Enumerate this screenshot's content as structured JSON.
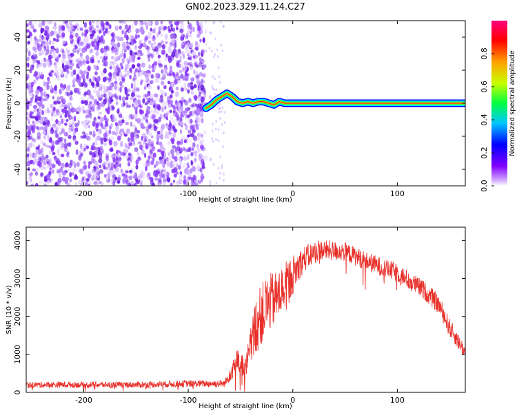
{
  "title": "GN02.2023.329.11.24.C27",
  "colors": {
    "trace": "#e8302a",
    "frame": "#000000",
    "noise": "#7a2cf0",
    "line": "#ff3030"
  },
  "chart_data": [
    {
      "type": "heatmap",
      "xlabel": "Height of straight line (km)",
      "ylabel": "Frequency (Hz)",
      "xlim": [
        -255,
        165
      ],
      "ylim": [
        -50,
        50
      ],
      "xticks": [
        -200,
        -100,
        0,
        100
      ],
      "yticks": [
        -40,
        -20,
        0,
        20,
        40
      ],
      "xtick_labels": [
        "-200",
        "-100",
        "0",
        "100"
      ],
      "ytick_labels": [
        "-40",
        "-20",
        "0",
        "20",
        "40"
      ],
      "colorbar": {
        "label": "Normalized spectral amplitude",
        "range": [
          0,
          1
        ],
        "ticks": [
          0.0,
          0.2,
          0.4,
          0.6,
          0.8
        ],
        "tick_labels": [
          "0.0",
          "0.2",
          "0.4",
          "0.6",
          "0.8"
        ],
        "colormap": [
          "#ffffff",
          "#8000ff",
          "#0000ff",
          "#00c8ff",
          "#00ff40",
          "#c8ff00",
          "#ffa000",
          "#ff0000",
          "#ff0080"
        ]
      },
      "noise_region_x": [
        -255,
        -83
      ],
      "signal_track": {
        "x": [
          -83,
          -78,
          -73,
          -68,
          -63,
          -58,
          -53,
          -48,
          -43,
          -38,
          -33,
          -28,
          -23,
          -18,
          -13,
          -8,
          0,
          50,
          100,
          165
        ],
        "y": [
          -3,
          -1,
          2,
          4,
          6,
          4,
          1,
          0,
          1,
          0,
          1,
          1,
          0,
          -1,
          1,
          0,
          0,
          0,
          0,
          0
        ]
      }
    },
    {
      "type": "line",
      "xlabel": "Height of straight line (km)",
      "ylabel": "SNR (10 * v/v)",
      "xlim": [
        -255,
        165
      ],
      "ylim": [
        0,
        4350
      ],
      "xticks": [
        -200,
        -100,
        0,
        100
      ],
      "yticks": [
        0,
        1000,
        2000,
        3000,
        4000
      ],
      "xtick_labels": [
        "-200",
        "-100",
        "0",
        "100"
      ],
      "ytick_labels": [
        "0",
        "1000",
        "2000",
        "3000",
        "4000"
      ],
      "series": [
        {
          "envelope_x": [
            -255,
            -200,
            -150,
            -100,
            -65,
            -55,
            -45,
            -35,
            -25,
            -15,
            -5,
            10,
            25,
            50,
            75,
            100,
            125,
            140,
            150,
            165
          ],
          "envelope_y": [
            200,
            200,
            200,
            230,
            230,
            800,
            600,
            1800,
            2300,
            2500,
            2900,
            3500,
            3750,
            3700,
            3400,
            3150,
            2700,
            2300,
            1700,
            1050
          ],
          "spread_y": [
            80,
            80,
            80,
            90,
            100,
            350,
            350,
            800,
            800,
            700,
            600,
            350,
            280,
            250,
            250,
            250,
            250,
            250,
            250,
            200
          ]
        }
      ]
    }
  ]
}
